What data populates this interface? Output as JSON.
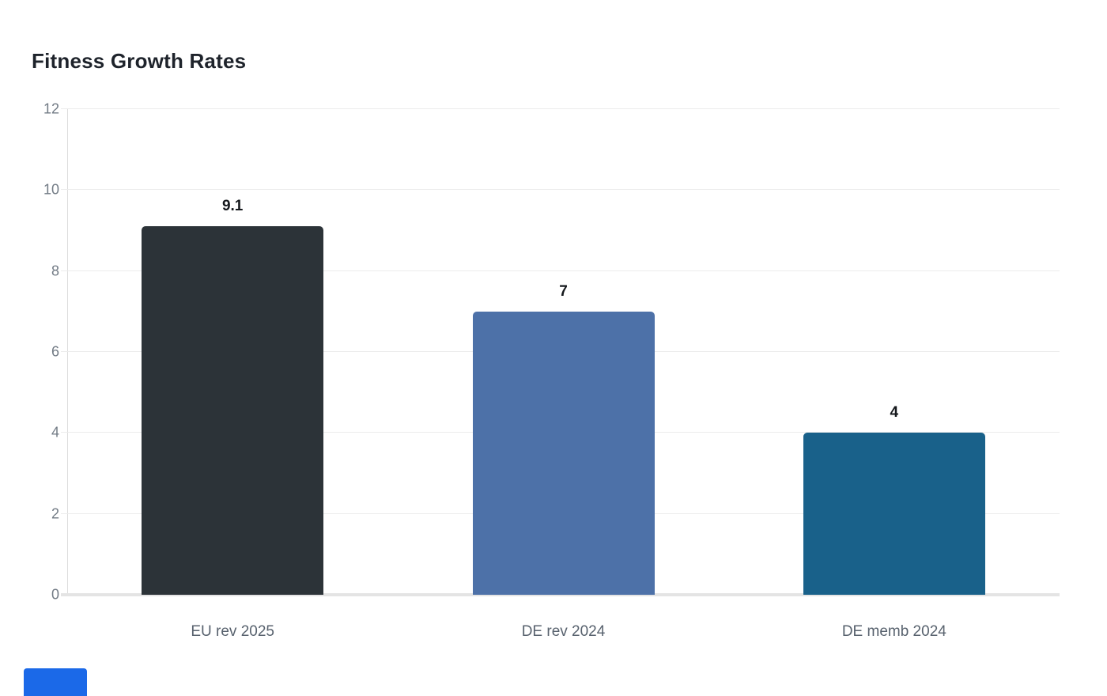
{
  "page": {
    "title": "Fitness Growth Rates"
  },
  "chart_data": {
    "type": "bar",
    "title": "Fitness Growth Rates",
    "categories": [
      "EU rev 2025",
      "DE rev 2024",
      "DE memb 2024"
    ],
    "values": [
      9.1,
      7,
      4
    ],
    "value_labels": [
      "9.1",
      "7",
      "4"
    ],
    "bar_colors": [
      "#2c3338",
      "#4d71a8",
      "#19618a"
    ],
    "xlabel": "",
    "ylabel": "",
    "y_ticks": [
      0,
      2,
      4,
      6,
      8,
      10,
      12
    ],
    "ylim": [
      0,
      12
    ],
    "grid": "horizontal-on",
    "legend_position": "none"
  },
  "colors": {
    "title_text": "#1e232b",
    "value_label_text": "#15181c",
    "category_label_text": "#58626e",
    "tick_label_text": "#727b85",
    "gridline": "#ececec",
    "axis_line": "#dcdcdc",
    "baseline": "#e4e4e4",
    "background": "#ffffff",
    "bottom_accent_blue": "#1b69e8"
  },
  "footer": {
    "blue_button_label": ""
  }
}
